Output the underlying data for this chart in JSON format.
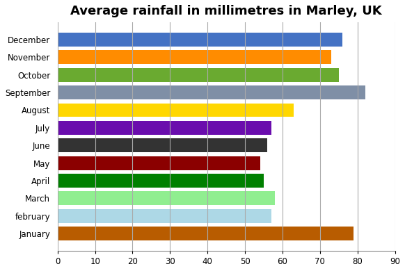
{
  "title": "Average rainfall in millimetres in Marley, UK",
  "months": [
    "January",
    "february",
    "March",
    "April",
    "May",
    "June",
    "July",
    "August",
    "September",
    "October",
    "November",
    "December"
  ],
  "values": [
    79,
    57,
    58,
    55,
    54,
    56,
    57,
    63,
    82,
    75,
    73,
    76
  ],
  "colors": [
    "#b85c00",
    "#add8e6",
    "#90ee90",
    "#008000",
    "#8b0000",
    "#333333",
    "#6a0dad",
    "#ffd700",
    "#7f8fa6",
    "#6aaa30",
    "#ff8c00",
    "#4472c4"
  ],
  "xlim": [
    0,
    90
  ],
  "xticks": [
    0,
    10,
    20,
    30,
    40,
    50,
    60,
    70,
    80,
    90
  ],
  "title_fontsize": 13,
  "background_color": "#ffffff",
  "grid_color": "#aaaaaa",
  "grid_linewidth": 0.8
}
